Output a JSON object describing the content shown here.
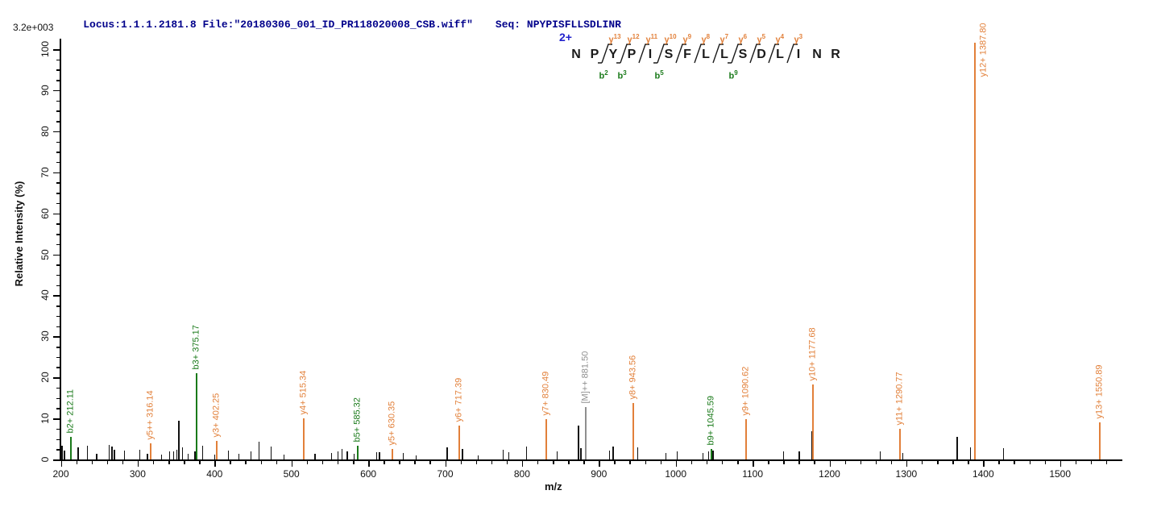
{
  "header": {
    "locus_file": "Locus:1.1.1.2181.8 File:\"20180306_001_ID_PR118020008_CSB.wiff\"",
    "seq": "Seq: NPYPISFLLSDLINR"
  },
  "precursor": {
    "charge": "2+",
    "sequence": "NPYPISFLLSDLINR"
  },
  "fragment_cuts": [
    {
      "after": 2,
      "y": "13",
      "b": "2"
    },
    {
      "after": 3,
      "y": "12",
      "b": "3"
    },
    {
      "after": 4,
      "y": "11",
      "b": null
    },
    {
      "after": 5,
      "y": "10",
      "b": "5"
    },
    {
      "after": 6,
      "y": "9",
      "b": null
    },
    {
      "after": 7,
      "y": "8",
      "b": null
    },
    {
      "after": 8,
      "y": "7",
      "b": null
    },
    {
      "after": 9,
      "y": "6",
      "b": "9"
    },
    {
      "after": 10,
      "y": "5",
      "b": null
    },
    {
      "after": 11,
      "y": "4",
      "b": null
    },
    {
      "after": 12,
      "y": "3",
      "b": null
    }
  ],
  "chart_data": {
    "type": "bar",
    "subtype": "ms2_fragmentation_spectrum",
    "scale_label": "3.2e+003",
    "xlabel": "m/z",
    "ylabel": "Relative  Intensity  (%)",
    "xlim": [
      200,
      1575
    ],
    "ylim": [
      0,
      100
    ],
    "x_major_ticks": [
      200,
      300,
      400,
      500,
      600,
      700,
      800,
      900,
      1000,
      1100,
      1200,
      1300,
      1400,
      1500
    ],
    "x_minor_step": 20,
    "y_major_ticks": [
      0,
      10,
      20,
      30,
      40,
      50,
      60,
      70,
      80,
      90,
      100
    ],
    "y_minor_step": 2.5,
    "grid": false,
    "legend": "none",
    "labeled_peaks": [
      {
        "label": "b2+ 212.11",
        "mz": 212.11,
        "intensity": 5.5,
        "ion": "b"
      },
      {
        "label": "y5++ 316.14",
        "mz": 316.14,
        "intensity": 4.0,
        "ion": "y"
      },
      {
        "label": "b3+ 375.17",
        "mz": 375.17,
        "intensity": 21.0,
        "ion": "b"
      },
      {
        "label": "y3+ 402.25",
        "mz": 402.25,
        "intensity": 4.5,
        "ion": "y"
      },
      {
        "label": "y4+ 515.34",
        "mz": 515.34,
        "intensity": 10.0,
        "ion": "y"
      },
      {
        "label": "b5+ 585.32",
        "mz": 585.32,
        "intensity": 3.3,
        "ion": "b"
      },
      {
        "label": "y5+ 630.35",
        "mz": 630.35,
        "intensity": 2.5,
        "ion": "y"
      },
      {
        "label": "y6+ 717.39",
        "mz": 717.39,
        "intensity": 8.3,
        "ion": "y"
      },
      {
        "label": "y7+ 830.49",
        "mz": 830.49,
        "intensity": 9.8,
        "ion": "y"
      },
      {
        "label": "[M]++ 881.50",
        "mz": 881.5,
        "intensity": 12.8,
        "ion": "precursor"
      },
      {
        "label": "y8+ 943.56",
        "mz": 943.56,
        "intensity": 13.8,
        "ion": "y"
      },
      {
        "label": "b9+ 1045.59",
        "mz": 1045.59,
        "intensity": 2.5,
        "ion": "b"
      },
      {
        "label": "y9+ 1090.62",
        "mz": 1090.62,
        "intensity": 9.8,
        "ion": "y"
      },
      {
        "label": "y10+ 1177.68",
        "mz": 1177.68,
        "intensity": 18.3,
        "ion": "y"
      },
      {
        "label": "y11+ 1290.77",
        "mz": 1290.77,
        "intensity": 7.5,
        "ion": "y"
      },
      {
        "label": "y12+ 1387.80",
        "mz": 1387.8,
        "intensity": 101.5,
        "ion": "y"
      },
      {
        "label": "y13+ 1550.89",
        "mz": 1550.89,
        "intensity": 9.0,
        "ion": "y"
      }
    ],
    "unlabeled_peaks": [
      [
        201,
        3.3
      ],
      [
        204,
        2.2
      ],
      [
        222,
        2.9
      ],
      [
        234,
        3.3
      ],
      [
        246,
        1.4
      ],
      [
        262,
        3.6
      ],
      [
        266,
        3.1
      ],
      [
        269,
        2.4
      ],
      [
        282,
        2.1
      ],
      [
        302,
        2.4
      ],
      [
        312,
        1.4
      ],
      [
        330,
        1.2
      ],
      [
        341,
        2.0
      ],
      [
        346,
        2.0
      ],
      [
        350,
        2.4
      ],
      [
        352,
        9.5
      ],
      [
        353,
        4.4
      ],
      [
        358,
        3.0
      ],
      [
        365,
        1.4
      ],
      [
        374,
        2.0
      ],
      [
        384,
        3.4
      ],
      [
        400,
        1.2
      ],
      [
        417,
        2.2
      ],
      [
        431,
        1.3
      ],
      [
        447,
        2.0
      ],
      [
        457,
        4.3
      ],
      [
        473,
        3.2
      ],
      [
        490,
        1.2
      ],
      [
        530,
        1.4
      ],
      [
        552,
        1.5
      ],
      [
        560,
        2.0
      ],
      [
        565,
        2.5
      ],
      [
        572,
        2.0
      ],
      [
        581,
        1.4
      ],
      [
        610,
        1.8
      ],
      [
        614,
        1.8
      ],
      [
        645,
        1.6
      ],
      [
        662,
        1.0
      ],
      [
        702,
        3.0
      ],
      [
        722,
        2.5
      ],
      [
        742,
        1.0
      ],
      [
        775,
        2.3
      ],
      [
        782,
        1.8
      ],
      [
        805,
        3.2
      ],
      [
        845,
        2.0
      ],
      [
        872,
        8.3
      ],
      [
        876,
        2.8
      ],
      [
        913,
        2.2
      ],
      [
        918,
        3.1
      ],
      [
        950,
        3.0
      ],
      [
        987,
        1.5
      ],
      [
        1001,
        2.0
      ],
      [
        1035,
        1.6
      ],
      [
        1042,
        2.0
      ],
      [
        1048,
        2.2
      ],
      [
        1090,
        2.8
      ],
      [
        1140,
        2.0
      ],
      [
        1160,
        1.9
      ],
      [
        1176,
        6.8
      ],
      [
        1265,
        2.0
      ],
      [
        1295,
        1.5
      ],
      [
        1365,
        5.5
      ],
      [
        1383,
        3.0
      ],
      [
        1426,
        2.8
      ]
    ]
  },
  "colors": {
    "y_ion": "#e2803a",
    "b_ion": "#1a7a1a",
    "precursor": "#8f8f8f",
    "peak": "#111111",
    "header_text": "#00008b",
    "charge_text": "#2222cc",
    "axis": "#000000"
  }
}
